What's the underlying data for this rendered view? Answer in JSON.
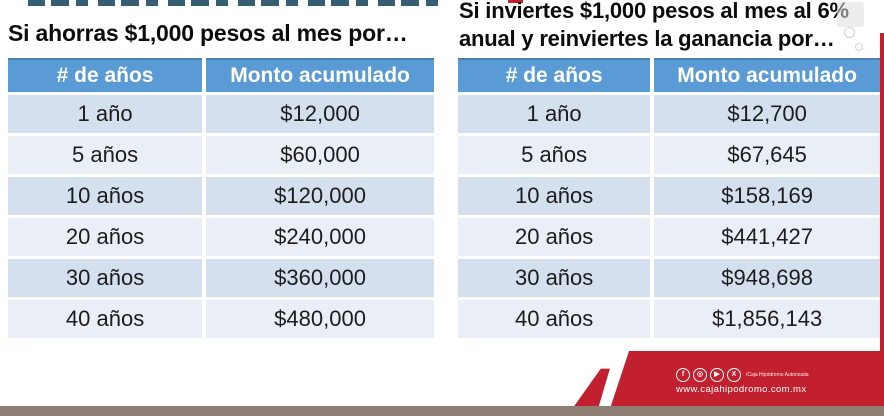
{
  "left_table": {
    "title": "Si ahorras $1,000 pesos al mes por…",
    "headers": [
      "# de años",
      "Monto acumulado"
    ],
    "rows": [
      [
        "1 año",
        "$12,000"
      ],
      [
        "5 años",
        "$60,000"
      ],
      [
        "10 años",
        "$120,000"
      ],
      [
        "20 años",
        "$240,000"
      ],
      [
        "30 años",
        "$360,000"
      ],
      [
        "40 años",
        "$480,000"
      ]
    ]
  },
  "right_table": {
    "title_line1": "Si inviertes $1,000 pesos al mes al 6%",
    "title_line2": "anual y reinviertes la ganancia por…",
    "headers": [
      "# de años",
      "Monto acumulado"
    ],
    "rows": [
      [
        "1 año",
        "$12,700"
      ],
      [
        "5 años",
        "$67,645"
      ],
      [
        "10 años",
        "$158,169"
      ],
      [
        "20 años",
        "$441,427"
      ],
      [
        "30 años",
        "$948,698"
      ],
      [
        "40 años",
        "$1,856,143"
      ]
    ]
  },
  "footer": {
    "icons": [
      {
        "name": "facebook-icon",
        "glyph": "f"
      },
      {
        "name": "instagram-icon",
        "glyph": "◎"
      },
      {
        "name": "youtube-icon",
        "glyph": "▶"
      },
      {
        "name": "x-icon",
        "glyph": "X"
      }
    ],
    "tagline": "/Caja Hipódromo Autorizada",
    "website": "www.cajahipodromo.com.mx"
  },
  "colors": {
    "table_header_blue": "#5b9bd5",
    "row_band_dark": "#d5e0ef",
    "row_band_light": "#eaeff7",
    "brand_red": "#c3202f",
    "bottom_bar_tan": "#8e7e73"
  }
}
